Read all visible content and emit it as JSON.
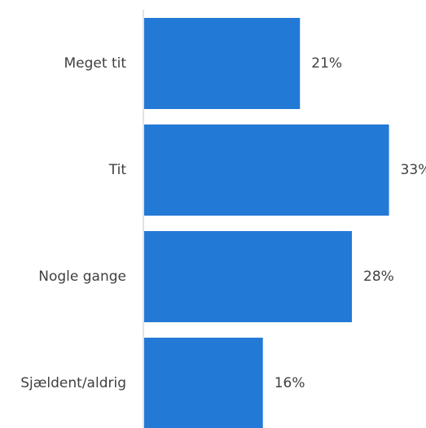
{
  "chart_data": {
    "type": "bar",
    "orientation": "horizontal",
    "categories": [
      "Meget tit",
      "Tit",
      "Nogle gange",
      "Sjældent/aldrig"
    ],
    "values": [
      21,
      33,
      28,
      16
    ],
    "value_labels": [
      "21%",
      "33%",
      "28%",
      "16%"
    ],
    "unit": "%",
    "xlim": [
      0,
      37
    ],
    "grid": false,
    "legend": "none",
    "bar_color": "#2379d6",
    "axis_color": "#d9d9d9",
    "text_color": "#404040"
  }
}
